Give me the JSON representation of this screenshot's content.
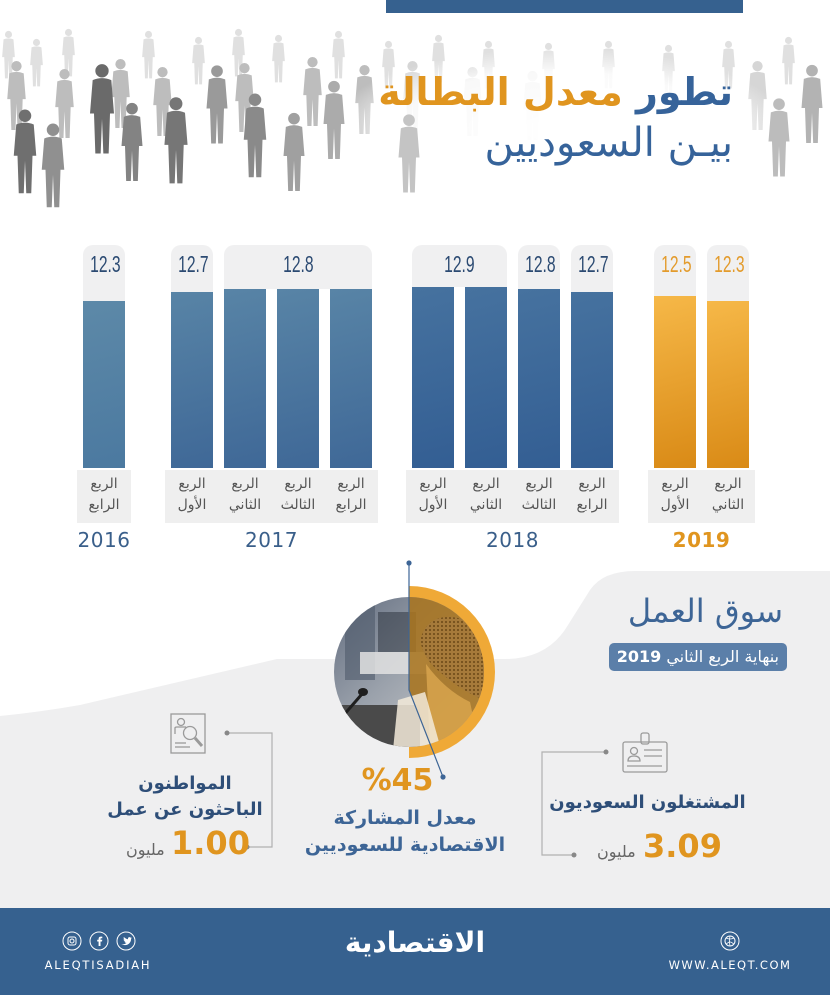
{
  "header": {
    "title_word1": "تطور",
    "title_word2": "معدل البطالة",
    "title_line2": "بيـن السعوديين"
  },
  "chart": {
    "years": [
      {
        "year": "2016",
        "highlight": false,
        "bar_colors": [
          "#5d89a8",
          "#4b79a0"
        ],
        "quarters": [
          {
            "line1": "الربع",
            "line2": "الرابع",
            "value": 12.3
          }
        ],
        "value_labels": [
          {
            "span": 1,
            "text": "12.3"
          }
        ]
      },
      {
        "year": "2017",
        "highlight": false,
        "bar_colors": [
          "#5884a6",
          "#3f6897"
        ],
        "quarters": [
          {
            "line1": "الربع",
            "line2": "الأول",
            "value": 12.7
          },
          {
            "line1": "الربع",
            "line2": "الثاني",
            "value": 12.8
          },
          {
            "line1": "الربع",
            "line2": "الثالث",
            "value": 12.8
          },
          {
            "line1": "الربع",
            "line2": "الرابع",
            "value": 12.8
          }
        ],
        "value_labels": [
          {
            "span": 1,
            "text": "12.7"
          },
          {
            "span": 3,
            "text": "12.8"
          }
        ]
      },
      {
        "year": "2018",
        "highlight": false,
        "bar_colors": [
          "#46729f",
          "#335e93"
        ],
        "quarters": [
          {
            "line1": "الربع",
            "line2": "الأول",
            "value": 12.9
          },
          {
            "line1": "الربع",
            "line2": "الثاني",
            "value": 12.9
          },
          {
            "line1": "الربع",
            "line2": "الثالث",
            "value": 12.8
          },
          {
            "line1": "الربع",
            "line2": "الرابع",
            "value": 12.7
          }
        ],
        "value_labels": [
          {
            "span": 2,
            "text": "12.9"
          },
          {
            "span": 1,
            "text": "12.8"
          },
          {
            "span": 1,
            "text": "12.7"
          }
        ]
      },
      {
        "year": "2019",
        "highlight": true,
        "bar_colors": [
          "#f6b848",
          "#d98a16"
        ],
        "quarters": [
          {
            "line1": "الربع",
            "line2": "الأول",
            "value": 12.5
          },
          {
            "line1": "الربع",
            "line2": "الثاني",
            "value": 12.3
          }
        ],
        "value_labels": [
          {
            "span": 1,
            "text": "12.5"
          },
          {
            "span": 1,
            "text": "12.3"
          }
        ]
      }
    ]
  },
  "chart_data": {
    "type": "bar",
    "title": "تطور معدل البطالة بين السعوديين",
    "categories": [
      "الربع الرابع 2016",
      "الربع الأول 2017",
      "الربع الثاني 2017",
      "الربع الثالث 2017",
      "الربع الرابع 2017",
      "الربع الأول 2018",
      "الربع الثاني 2018",
      "الربع الثالث 2018",
      "الربع الرابع 2018",
      "الربع الأول 2019",
      "الربع الثاني 2019"
    ],
    "values": [
      12.3,
      12.7,
      12.8,
      12.8,
      12.8,
      12.9,
      12.9,
      12.8,
      12.7,
      12.5,
      12.3
    ],
    "group_labels": [
      "2016",
      "2017",
      "2018",
      "2019"
    ],
    "highlighted_group": "2019",
    "xlabel": "",
    "ylabel": "",
    "grid": false,
    "legend": null
  },
  "labor_market": {
    "title": "سوق العمل",
    "subtitle_text": "بنهاية الربع الثاني",
    "subtitle_year": "2019"
  },
  "participation": {
    "value": "%45",
    "label_line1": "معدل المشاركة",
    "label_line2": "الاقتصادية للسعوديين"
  },
  "job_seekers": {
    "label_line1": "المواطنون",
    "label_line2": "الباحثون عن عمل",
    "value": "1.00",
    "unit": "مليون"
  },
  "employed": {
    "label": "المشتغلون السعوديون",
    "value": "3.09",
    "unit": "مليون"
  },
  "footer": {
    "social_handle": "ALEQTISADIAH",
    "logo_text": "الاقتصادية",
    "website": "WWW.ALEQT.COM",
    "social_icons": [
      "instagram-icon",
      "facebook-icon",
      "twitter-icon"
    ],
    "website_icon": "dribbble-icon"
  },
  "colors": {
    "brand_blue": "#36618f",
    "title_blue": "#36639a",
    "accent_orange": "#e0951f",
    "panel_gray": "#efeff0",
    "pill_blue": "#5b7fa9"
  }
}
